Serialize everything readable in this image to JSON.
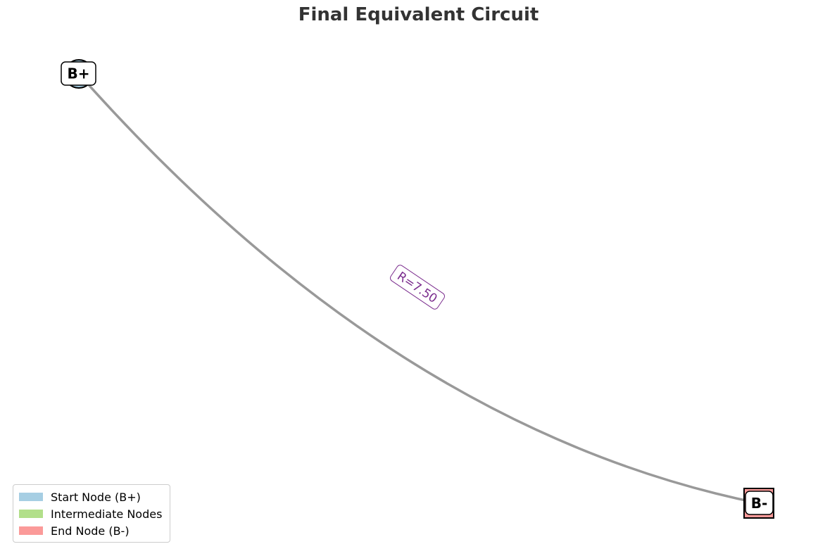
{
  "title": "Final Equivalent Circuit",
  "nodes": {
    "start": {
      "label": "B+",
      "shape": "circle",
      "fill": "#a6cee3"
    },
    "end": {
      "label": "B-",
      "shape": "square",
      "fill": "#fb9a99"
    }
  },
  "edge": {
    "label": "R=7.50",
    "color": "#999999",
    "label_color": "#7b2d8e"
  },
  "legend": {
    "items": [
      {
        "label": "Start Node (B+)",
        "color": "#a6cee3"
      },
      {
        "label": "Intermediate Nodes",
        "color": "#b2df8a"
      },
      {
        "label": "End Node (B-)",
        "color": "#fb9a99"
      }
    ]
  }
}
